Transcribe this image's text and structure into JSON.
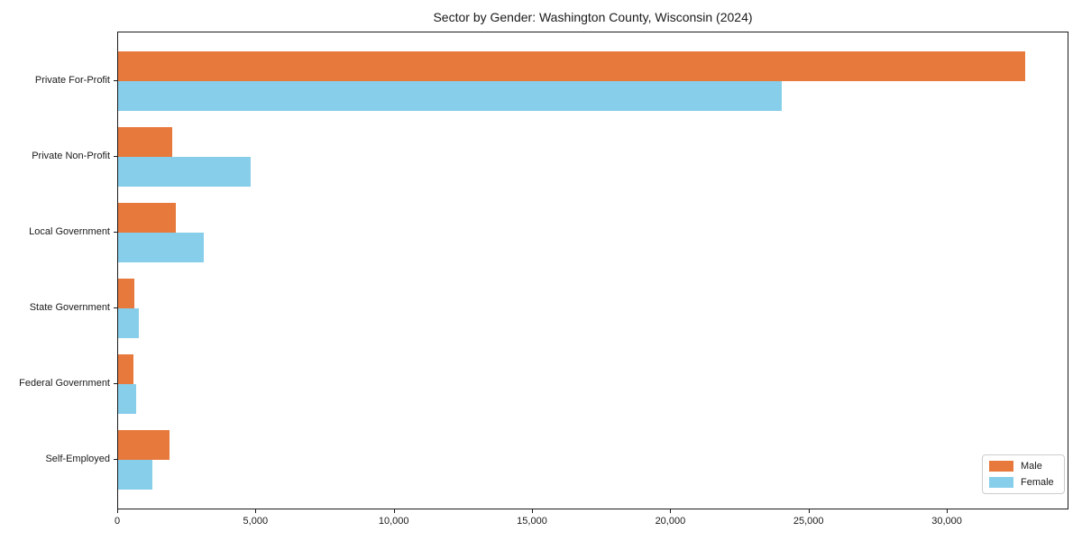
{
  "chart_data": {
    "type": "bar",
    "orientation": "horizontal",
    "title": "Sector by Gender: Washington County, Wisconsin (2024)",
    "categories": [
      "Private For-Profit",
      "Private Non-Profit",
      "Local Government",
      "State Government",
      "Federal Government",
      "Self-Employed"
    ],
    "series": [
      {
        "name": "Male",
        "color": "#e8793d",
        "values": [
          32800,
          1950,
          2100,
          590,
          550,
          1870
        ]
      },
      {
        "name": "Female",
        "color": "#87ceeb",
        "values": [
          24000,
          4800,
          3100,
          750,
          650,
          1250
        ]
      }
    ],
    "xlabel": "",
    "ylabel": "",
    "xlim": [
      0,
      34400
    ],
    "x_ticks": [
      0,
      5000,
      10000,
      15000,
      20000,
      25000,
      30000
    ],
    "x_tick_labels": [
      "0",
      "5,000",
      "10,000",
      "15,000",
      "20,000",
      "25,000",
      "30,000"
    ],
    "grid": false,
    "legend": {
      "position": "lower right",
      "entries": [
        "Male",
        "Female"
      ]
    }
  }
}
